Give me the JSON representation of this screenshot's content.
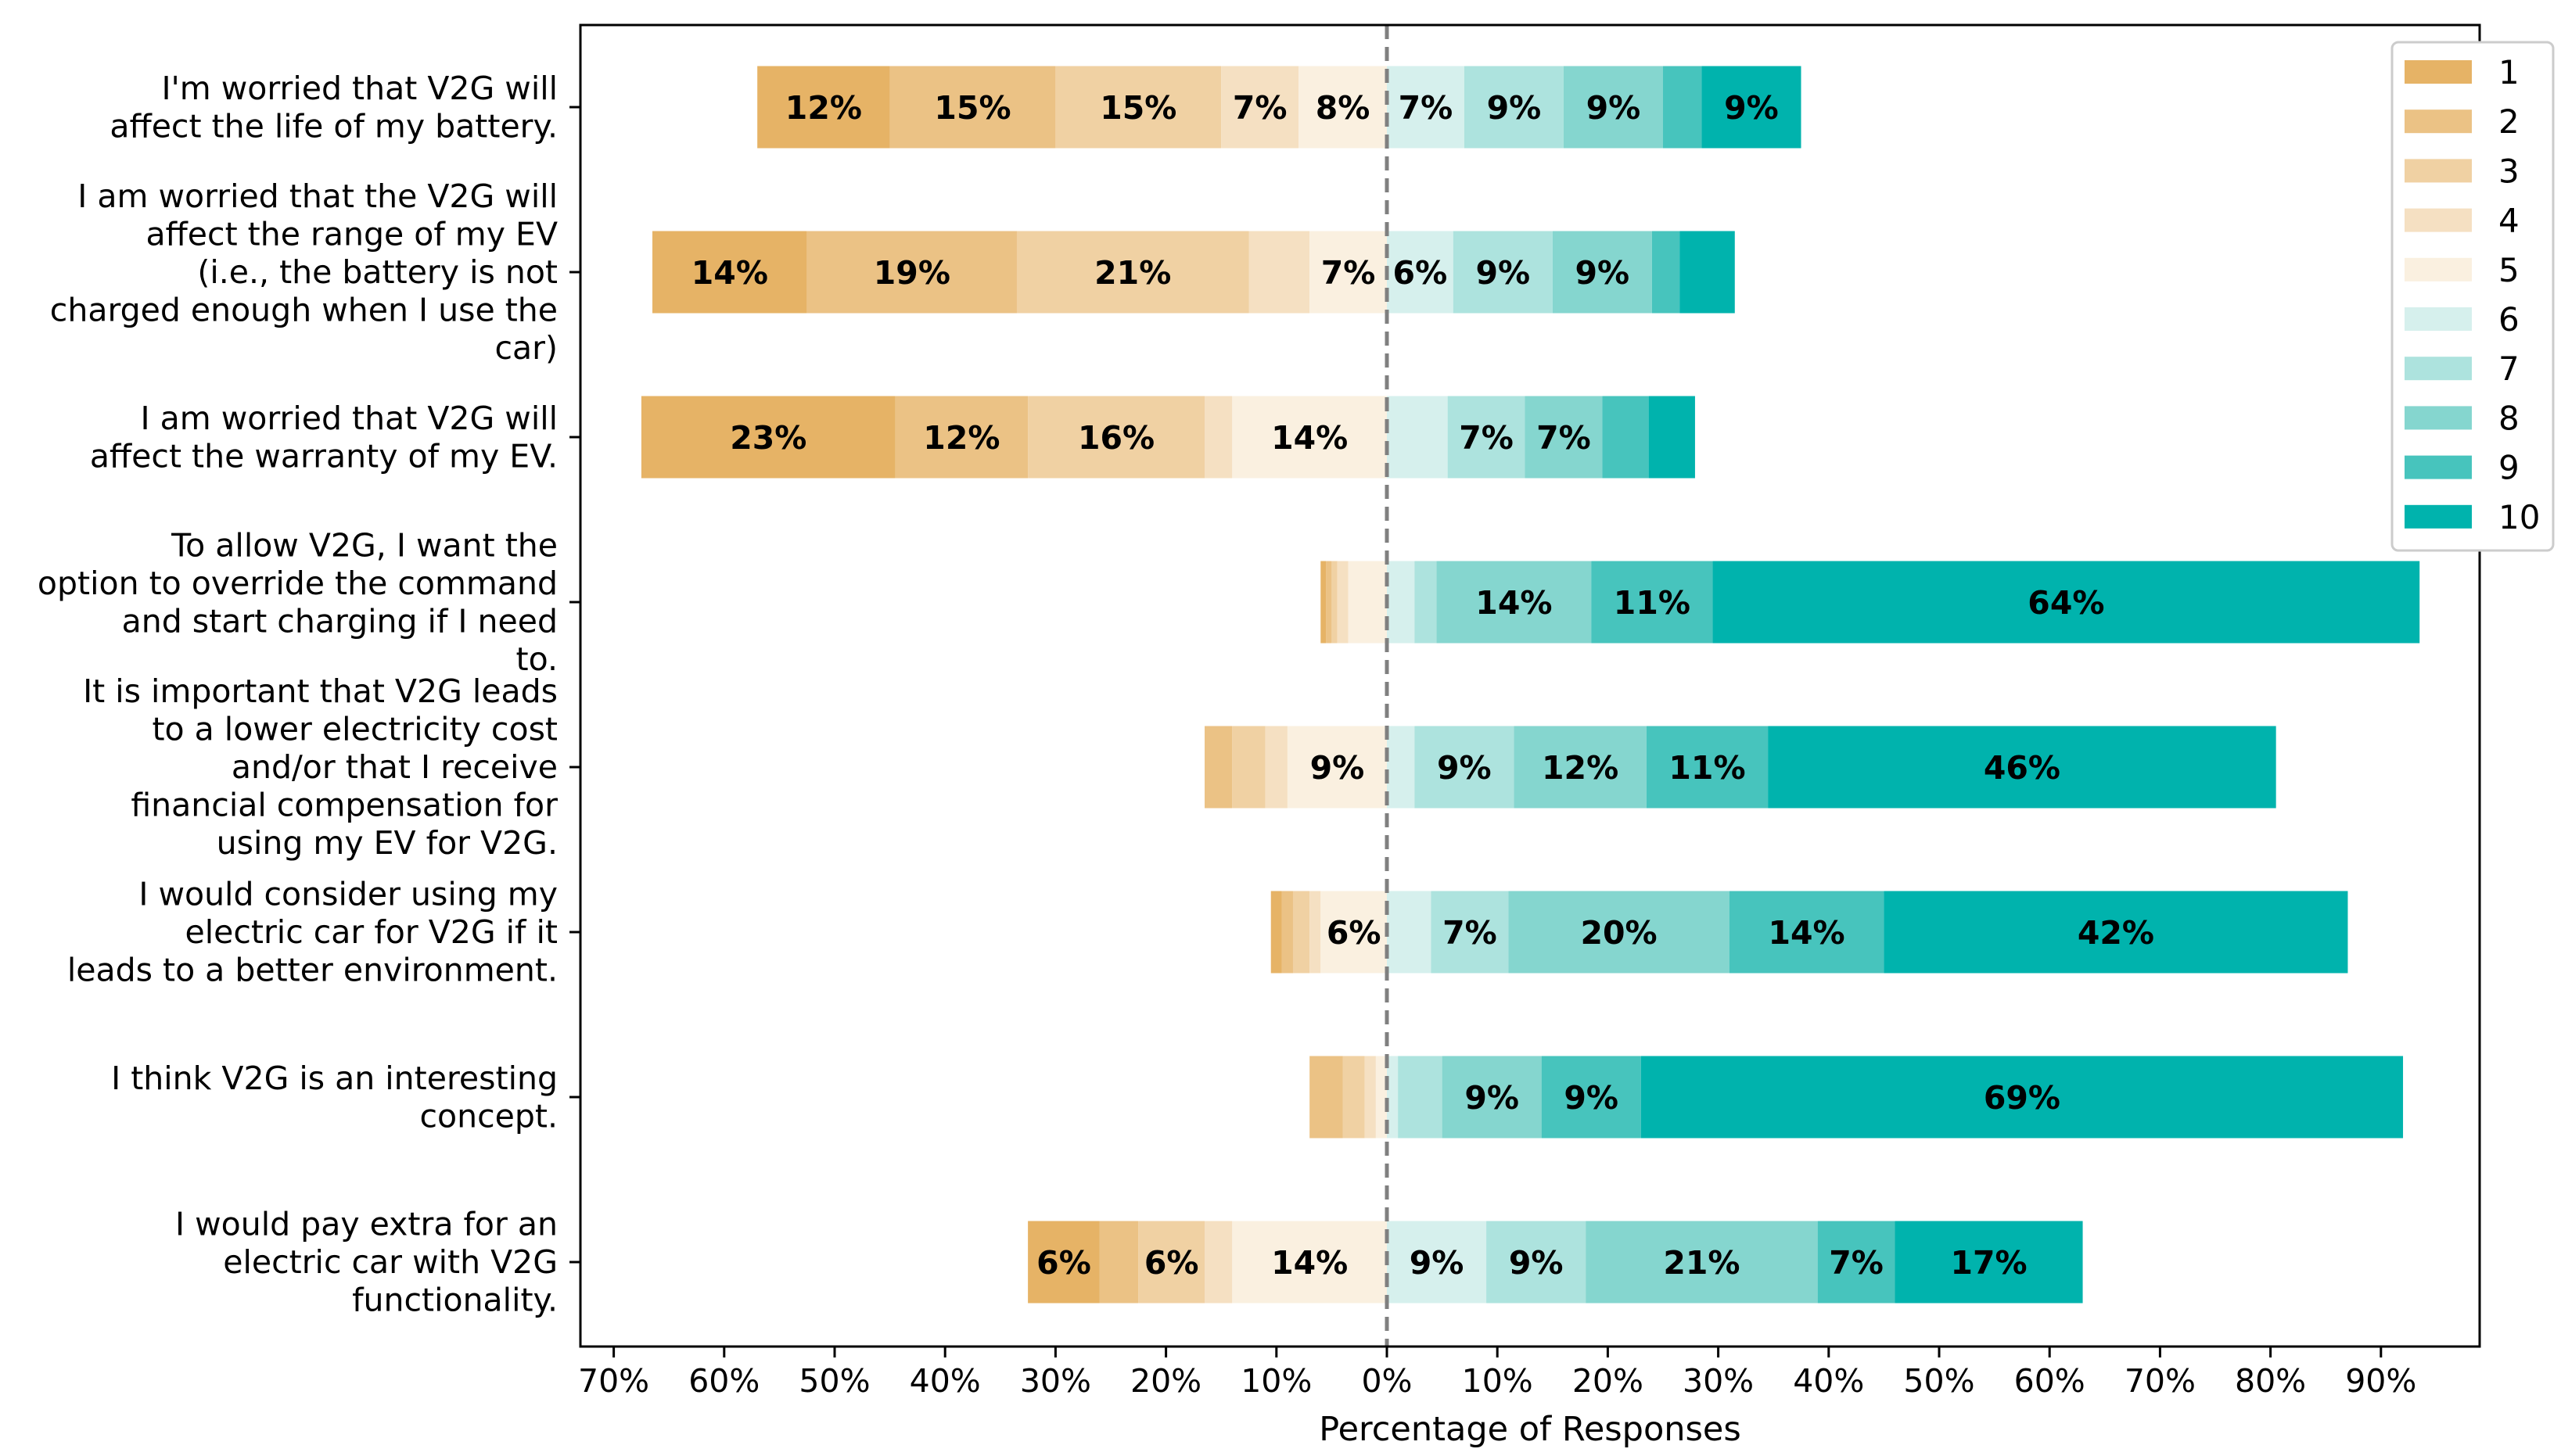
{
  "chart_data": {
    "type": "bar",
    "orientation": "horizontal-diverging",
    "title": "",
    "xlabel": "Percentage of Responses",
    "ylabel": "",
    "xlim": [
      -70,
      95
    ],
    "center_line": 0,
    "x_ticks": [
      -70,
      -60,
      -50,
      -40,
      -30,
      -20,
      -10,
      0,
      10,
      20,
      30,
      40,
      50,
      60,
      70,
      80,
      90
    ],
    "x_tick_labels": [
      "70%",
      "60%",
      "50%",
      "40%",
      "30%",
      "20%",
      "10%",
      "0%",
      "10%",
      "20%",
      "30%",
      "40%",
      "50%",
      "60%",
      "70%",
      "80%",
      "90%"
    ],
    "scale_levels": [
      "1",
      "2",
      "3",
      "4",
      "5",
      "6",
      "7",
      "8",
      "9",
      "10"
    ],
    "colors": [
      "#e6b366",
      "#ebc285",
      "#f0d1a3",
      "#f5e0c2",
      "#faf0e0",
      "#d6f0ed",
      "#ade3de",
      "#85d6cf",
      "#47c4bd",
      "#00b3ad"
    ],
    "legend_position": "top-right",
    "categories": [
      [
        "I'm worried that V2G will",
        "affect the life of my battery."
      ],
      [
        "I am worried that the V2G will",
        "affect the range of my EV",
        "(i.e., the battery is not",
        "charged enough when I use the",
        "car)"
      ],
      [
        "I am worried that V2G will",
        "affect the warranty of my EV."
      ],
      [
        "To allow V2G, I want the",
        "option to override the command",
        "and start charging if I need",
        "to."
      ],
      [
        "It is important that V2G leads",
        "to a lower electricity cost",
        "and/or that I receive",
        "financial compensation for",
        "using my EV for V2G."
      ],
      [
        "I would consider using my",
        "electric car for V2G if it",
        "leads to a better environment."
      ],
      [
        "I think V2G is an interesting",
        "concept."
      ],
      [
        "I would pay extra for an",
        "electric car with V2G",
        "functionality."
      ]
    ],
    "series": [
      {
        "name": "1",
        "values": [
          12,
          14,
          23,
          0.5,
          0,
          1,
          0,
          6.5
        ]
      },
      {
        "name": "2",
        "values": [
          15,
          19,
          12,
          0.5,
          2.5,
          1,
          3,
          3.5
        ]
      },
      {
        "name": "3",
        "values": [
          15,
          21,
          16,
          0.5,
          3,
          1.5,
          2,
          6
        ]
      },
      {
        "name": "4",
        "values": [
          7,
          5.5,
          2.5,
          1,
          2,
          1,
          1,
          2.5
        ]
      },
      {
        "name": "5",
        "values": [
          8,
          7,
          14,
          3.5,
          9,
          6,
          1,
          14
        ]
      },
      {
        "name": "6",
        "values": [
          7,
          6,
          5.5,
          2.5,
          2.5,
          4,
          1,
          9
        ]
      },
      {
        "name": "7",
        "values": [
          9,
          9,
          7,
          2,
          9,
          7,
          4,
          9
        ]
      },
      {
        "name": "8",
        "values": [
          9,
          9,
          7,
          14,
          12,
          20,
          9,
          21
        ]
      },
      {
        "name": "9",
        "values": [
          3.5,
          2.5,
          4.2,
          11,
          11,
          14,
          9,
          7
        ]
      },
      {
        "name": "10",
        "values": [
          9,
          5,
          4.2,
          64,
          46,
          42,
          69,
          17
        ]
      }
    ],
    "data_labels": [
      [
        "12%",
        "15%",
        "15%",
        "7%",
        "8%",
        "7%",
        "9%",
        "9%",
        "",
        "9%"
      ],
      [
        "14%",
        "19%",
        "21%",
        "",
        "7%",
        "6%",
        "9%",
        "9%",
        "",
        ""
      ],
      [
        "23%",
        "12%",
        "16%",
        "",
        "14%",
        "",
        "7%",
        "7%",
        "",
        ""
      ],
      [
        "",
        "",
        "",
        "",
        "",
        "",
        "",
        "14%",
        "11%",
        "64%"
      ],
      [
        "",
        "",
        "",
        "",
        "9%",
        "",
        "9%",
        "12%",
        "11%",
        "46%"
      ],
      [
        "",
        "",
        "",
        "",
        "6%",
        "",
        "7%",
        "20%",
        "14%",
        "42%"
      ],
      [
        "",
        "",
        "",
        "",
        "",
        "",
        "",
        "9%",
        "9%",
        "69%"
      ],
      [
        "6%",
        "",
        "6%",
        "",
        "14%",
        "9%",
        "9%",
        "21%",
        "7%",
        "17%"
      ]
    ]
  }
}
